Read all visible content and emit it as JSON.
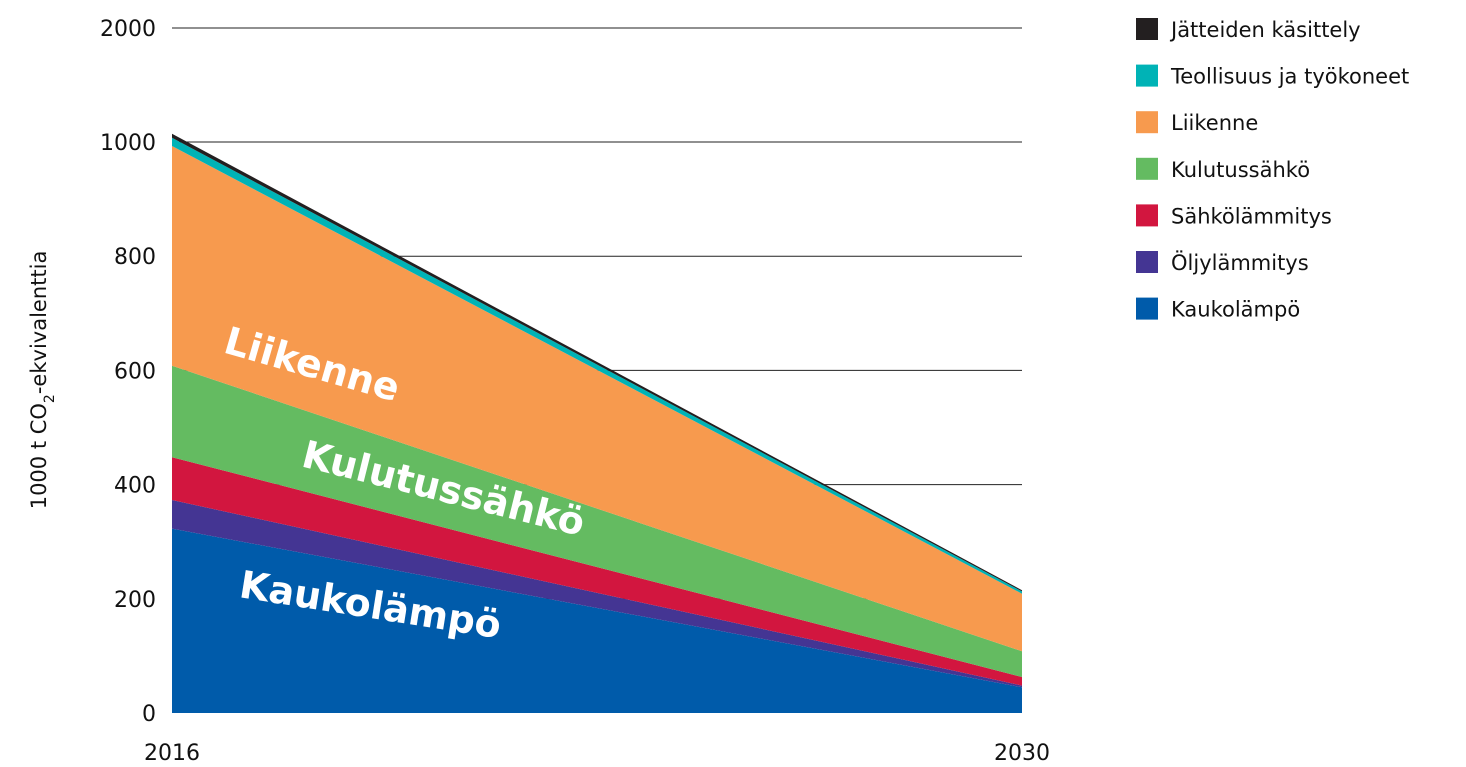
{
  "chart_data": {
    "type": "area",
    "stacked": true,
    "title": "",
    "xlabel": "",
    "ylabel": "1000 t CO",
    "ylabel_sub": "2",
    "ylabel_rest": "-ekvivalenttia",
    "x": [
      2016,
      2030
    ],
    "x_ticks": [
      "2016",
      "2030"
    ],
    "y_ticks": [
      0,
      200,
      400,
      600,
      800,
      1000,
      2000
    ],
    "y_tick_labels": [
      "0",
      "200",
      "400",
      "600",
      "800",
      "1000",
      "2000"
    ],
    "grid": "horizontal",
    "legend_position": "right",
    "series": [
      {
        "name": "Kaukolämpö",
        "color": "#005BAA",
        "values": [
          323,
          45
        ]
      },
      {
        "name": "Öljylämmitys",
        "color": "#443593",
        "values": [
          50,
          3
        ]
      },
      {
        "name": "Sähkölämmitys",
        "color": "#D2163F",
        "values": [
          75,
          15
        ]
      },
      {
        "name": "Kulutussähkö",
        "color": "#64BB61",
        "values": [
          160,
          45
        ]
      },
      {
        "name": "Liikenne",
        "color": "#F79A4E",
        "values": [
          385,
          101
        ]
      },
      {
        "name": "Teollisuus ja työkoneet",
        "color": "#00B3B6",
        "values": [
          45,
          4
        ]
      },
      {
        "name": "Jätteiden käsittely",
        "color": "#231F20",
        "values": [
          35,
          2
        ]
      }
    ],
    "area_labels": [
      "Liikenne",
      "Kulutussähkö",
      "Kaukolämpö"
    ]
  }
}
